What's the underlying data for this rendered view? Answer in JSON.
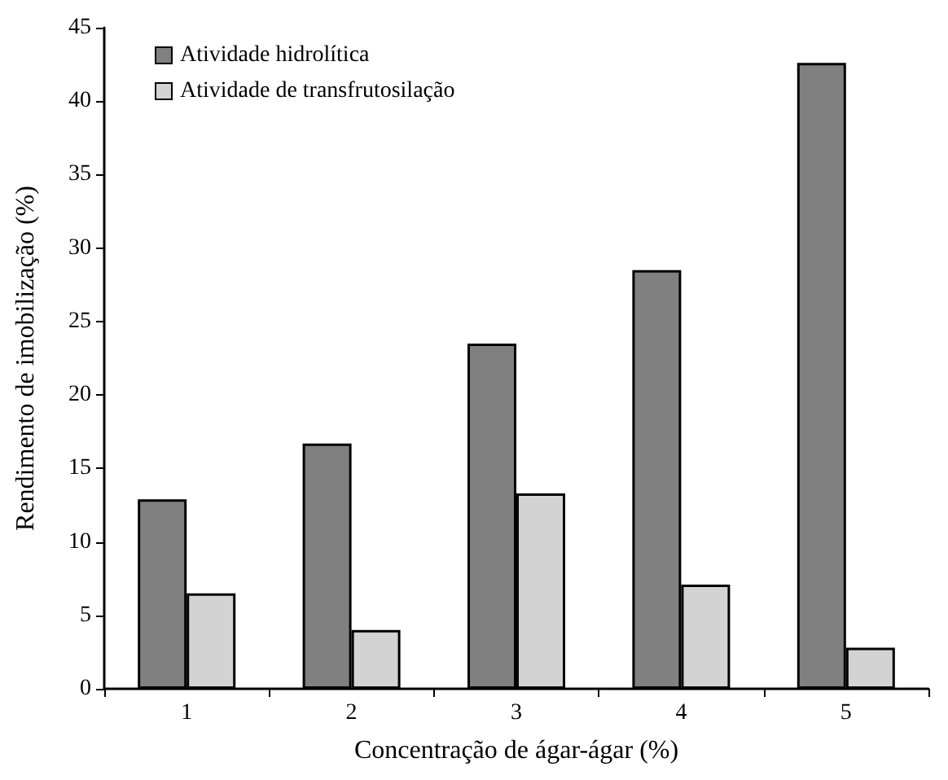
{
  "chart_data": {
    "type": "bar",
    "xlabel": "Concentração de ágar-ágar (%)",
    "ylabel": "Rendimento de imobilização (%)",
    "categories": [
      "1",
      "2",
      "3",
      "4",
      "5"
    ],
    "series": [
      {
        "name": "Atividade hidrolítica",
        "color": "#808080",
        "values": [
          12.9,
          16.7,
          23.5,
          28.5,
          42.6
        ]
      },
      {
        "name": "Atividade de transfrutosilação",
        "color": "#d3d3d3",
        "values": [
          6.5,
          4.0,
          13.3,
          7.1,
          2.8
        ]
      }
    ],
    "ylim": [
      0,
      45
    ],
    "yticks": [
      0,
      5,
      10,
      15,
      20,
      25,
      30,
      35,
      40,
      45
    ],
    "grid": false,
    "legend": "top left"
  }
}
